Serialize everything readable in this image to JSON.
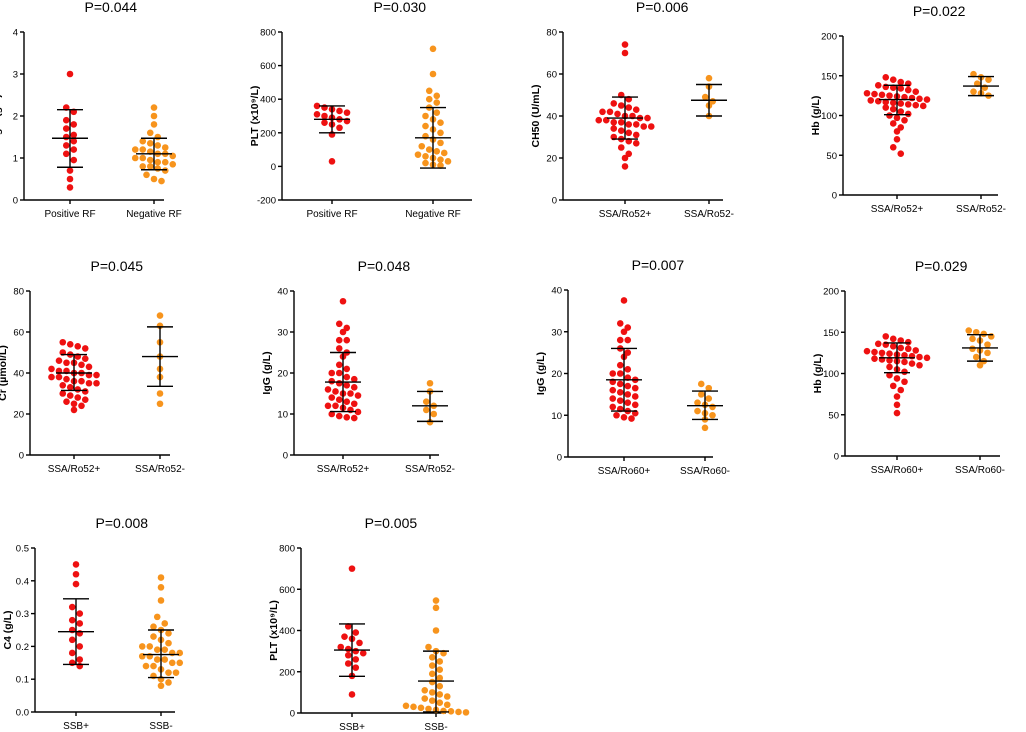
{
  "colors": {
    "group1": "#ee1111",
    "group2": "#f7941d",
    "axis": "#000000"
  },
  "chart_data": [
    {
      "type": "scatter",
      "title": "P=0.044",
      "ylabel": "IgM (g/L)",
      "ylim": [
        0,
        4
      ],
      "yticks": [
        0,
        1,
        2,
        3,
        4
      ],
      "categories": [
        "Positive RF",
        "Negative RF"
      ],
      "series": [
        {
          "name": "Positive RF",
          "color": "red",
          "values": [
            3.0,
            2.2,
            2.1,
            1.9,
            1.8,
            1.7,
            1.55,
            1.5,
            1.4,
            1.3,
            1.2,
            1.1,
            0.95,
            0.7,
            0.5,
            0.3
          ],
          "mean": 1.47,
          "sd_low": 0.78,
          "sd_high": 2.15
        },
        {
          "name": "Negative RF",
          "color": "orange",
          "values": [
            2.2,
            2.0,
            1.8,
            1.6,
            1.5,
            1.4,
            1.35,
            1.3,
            1.25,
            1.2,
            1.2,
            1.15,
            1.1,
            1.1,
            1.05,
            1.0,
            1.0,
            0.95,
            0.9,
            0.9,
            0.85,
            0.8,
            0.8,
            0.75,
            0.7,
            0.6,
            0.5,
            0.45
          ],
          "mean": 1.1,
          "sd_low": 0.72,
          "sd_high": 1.47
        }
      ]
    },
    {
      "type": "scatter",
      "title": "P=0.030",
      "ylabel": "PLT (x10⁹/L)",
      "ylim": [
        -200,
        800
      ],
      "yticks": [
        -200,
        0,
        200,
        400,
        600,
        800
      ],
      "categories": [
        "Positive RF",
        "Negative RF"
      ],
      "series": [
        {
          "name": "Positive RF",
          "color": "red",
          "values": [
            360,
            350,
            340,
            330,
            320,
            310,
            300,
            290,
            280,
            270,
            260,
            250,
            230,
            190,
            30
          ],
          "mean": 280,
          "sd_low": 200,
          "sd_high": 360
        },
        {
          "name": "Negative RF",
          "color": "orange",
          "values": [
            700,
            550,
            450,
            420,
            400,
            380,
            350,
            320,
            300,
            280,
            260,
            240,
            220,
            200,
            180,
            160,
            140,
            120,
            100,
            90,
            80,
            70,
            60,
            50,
            40,
            30,
            20,
            10,
            5
          ],
          "mean": 170,
          "sd_low": -10,
          "sd_high": 350
        }
      ]
    },
    {
      "type": "scatter",
      "title": "P=0.006",
      "ylabel": "CH50 (U/mL)",
      "ylim": [
        0,
        80
      ],
      "yticks": [
        0,
        20,
        40,
        60,
        80
      ],
      "categories": [
        "SSA/Ro52+",
        "SSA/Ro52-"
      ],
      "series": [
        {
          "name": "SSA/Ro52+",
          "color": "red",
          "values": [
            74,
            70,
            50,
            48,
            46,
            45,
            44,
            43,
            42,
            42,
            41,
            40,
            40,
            39,
            39,
            38,
            38,
            37,
            37,
            36,
            36,
            35,
            35,
            34,
            33,
            32,
            31,
            30,
            29,
            28,
            27,
            25,
            22,
            20,
            16
          ],
          "mean": 39,
          "sd_low": 29,
          "sd_high": 49
        },
        {
          "name": "SSA/Ro52-",
          "color": "orange",
          "values": [
            58,
            54,
            49,
            47,
            45,
            40
          ],
          "mean": 47.5,
          "sd_low": 40,
          "sd_high": 55
        }
      ]
    },
    {
      "type": "scatter",
      "title": "P=0.022",
      "ylabel": "Hb (g/L)",
      "ylim": [
        0,
        200
      ],
      "yticks": [
        0,
        50,
        100,
        150,
        200
      ],
      "categories": [
        "SSA/Ro52+",
        "SSA/Ro52-"
      ],
      "series": [
        {
          "name": "SSA/Ro52+",
          "color": "red",
          "values": [
            148,
            145,
            142,
            140,
            138,
            136,
            135,
            134,
            132,
            130,
            128,
            127,
            126,
            125,
            124,
            123,
            122,
            121,
            120,
            119,
            118,
            117,
            116,
            115,
            114,
            113,
            112,
            110,
            108,
            105,
            102,
            100,
            97,
            94,
            90,
            85,
            80,
            70,
            60,
            52
          ],
          "mean": 120,
          "sd_low": 101,
          "sd_high": 138
        },
        {
          "name": "SSA/Ro52-",
          "color": "orange",
          "values": [
            152,
            148,
            145,
            140,
            135,
            130,
            128,
            125
          ],
          "mean": 137,
          "sd_low": 125,
          "sd_high": 149
        }
      ]
    },
    {
      "type": "scatter",
      "title": "P=0.045",
      "ylabel": "Cr (µmol/L)",
      "ylim": [
        0,
        80
      ],
      "yticks": [
        0,
        20,
        40,
        60,
        80
      ],
      "categories": [
        "SSA/Ro52+",
        "SSA/Ro52-"
      ],
      "series": [
        {
          "name": "SSA/Ro52+",
          "color": "red",
          "values": [
            55,
            54,
            53,
            52,
            50,
            49,
            48,
            47,
            46,
            45,
            45,
            44,
            43,
            42,
            41,
            41,
            40,
            40,
            39,
            39,
            38,
            38,
            37,
            36,
            36,
            35,
            35,
            34,
            33,
            32,
            31,
            30,
            29,
            28,
            27,
            26,
            25,
            24,
            22
          ],
          "mean": 40,
          "sd_low": 31.5,
          "sd_high": 49
        },
        {
          "name": "SSA/Ro52-",
          "color": "orange",
          "values": [
            68,
            63,
            55,
            48,
            42,
            38,
            30,
            25
          ],
          "mean": 48,
          "sd_low": 33.5,
          "sd_high": 62.5
        }
      ]
    },
    {
      "type": "scatter",
      "title": "P=0.048",
      "ylabel": "IgG (g/L)",
      "ylim": [
        0,
        40
      ],
      "yticks": [
        0,
        10,
        20,
        30,
        40
      ],
      "categories": [
        "SSA/Ro52+",
        "SSA/Ro52-"
      ],
      "series": [
        {
          "name": "SSA/Ro52+",
          "color": "red",
          "values": [
            37.5,
            32,
            31,
            30,
            28,
            26,
            24,
            22,
            21,
            20,
            19,
            18.5,
            18,
            17.5,
            17,
            16.5,
            16,
            15.5,
            15,
            14.5,
            14,
            13.5,
            13,
            12.5,
            12,
            11.5,
            11,
            10.5,
            10,
            9.5,
            9.2,
            9,
            12,
            15,
            20,
            25,
            28
          ],
          "mean": 17.8,
          "sd_low": 10.6,
          "sd_high": 25
        },
        {
          "name": "SSA/Ro52-",
          "color": "orange",
          "values": [
            17.5,
            15.5,
            13,
            12,
            11,
            10,
            8
          ],
          "mean": 12,
          "sd_low": 8.2,
          "sd_high": 15.5
        }
      ]
    },
    {
      "type": "scatter",
      "title": "P=0.007",
      "ylabel": "IgG (g/L)",
      "ylim": [
        0,
        40
      ],
      "yticks": [
        0,
        10,
        20,
        30,
        40
      ],
      "categories": [
        "SSA/Ro60+",
        "SSA/Ro60-"
      ],
      "series": [
        {
          "name": "SSA/Ro60+",
          "color": "red",
          "values": [
            37.5,
            32,
            31,
            30,
            28,
            26,
            24,
            22,
            21,
            20,
            19,
            18.5,
            18,
            17.5,
            17,
            16.5,
            16,
            15.5,
            15,
            14.5,
            14,
            13.5,
            13,
            12.5,
            12,
            11.5,
            11,
            10.5,
            10,
            9.5,
            9.2,
            25,
            28,
            20
          ],
          "mean": 18.5,
          "sd_low": 11,
          "sd_high": 26
        },
        {
          "name": "SSA/Ro60-",
          "color": "orange",
          "values": [
            17.5,
            16.5,
            15,
            14,
            13,
            12.5,
            12,
            11,
            10.5,
            10,
            9,
            7
          ],
          "mean": 12.3,
          "sd_low": 9,
          "sd_high": 15.8
        }
      ]
    },
    {
      "type": "scatter",
      "title": "P=0.029",
      "ylabel": "Hb (g/L)",
      "ylim": [
        0,
        200
      ],
      "yticks": [
        0,
        50,
        100,
        150,
        200
      ],
      "categories": [
        "SSA/Ro60+",
        "SSA/Ro60-"
      ],
      "series": [
        {
          "name": "SSA/Ro60+",
          "color": "red",
          "values": [
            145,
            142,
            140,
            138,
            136,
            135,
            133,
            131,
            130,
            128,
            127,
            126,
            125,
            124,
            123,
            122,
            121,
            120,
            119,
            118,
            117,
            116,
            115,
            114,
            112,
            110,
            108,
            105,
            102,
            98,
            94,
            90,
            85,
            80,
            72,
            62,
            52
          ],
          "mean": 119,
          "sd_low": 101,
          "sd_high": 137
        },
        {
          "name": "SSA/Ro60-",
          "color": "orange",
          "values": [
            152,
            150,
            148,
            145,
            142,
            140,
            135,
            130,
            128,
            125,
            120,
            115,
            110
          ],
          "mean": 131,
          "sd_low": 115,
          "sd_high": 147
        }
      ]
    },
    {
      "type": "scatter",
      "title": "P=0.008",
      "ylabel": "C4 (g/L)",
      "ylim": [
        0,
        0.5
      ],
      "yticks": [
        0.0,
        0.1,
        0.2,
        0.3,
        0.4,
        0.5
      ],
      "categories": [
        "SSB+",
        "SSB-"
      ],
      "series": [
        {
          "name": "SSB+",
          "color": "red",
          "values": [
            0.45,
            0.42,
            0.39,
            0.32,
            0.3,
            0.28,
            0.27,
            0.25,
            0.24,
            0.22,
            0.2,
            0.18,
            0.16,
            0.15,
            0.14
          ],
          "mean": 0.245,
          "sd_low": 0.145,
          "sd_high": 0.345
        },
        {
          "name": "SSB-",
          "color": "orange",
          "values": [
            0.41,
            0.38,
            0.34,
            0.29,
            0.27,
            0.26,
            0.25,
            0.24,
            0.23,
            0.22,
            0.21,
            0.2,
            0.2,
            0.19,
            0.19,
            0.18,
            0.18,
            0.17,
            0.17,
            0.16,
            0.16,
            0.15,
            0.15,
            0.14,
            0.14,
            0.13,
            0.12,
            0.12,
            0.11,
            0.1,
            0.09,
            0.08
          ],
          "mean": 0.175,
          "sd_low": 0.105,
          "sd_high": 0.25
        }
      ]
    },
    {
      "type": "scatter",
      "title": "P=0.005",
      "ylabel": "PLT (x10⁹/L)",
      "ylim": [
        0,
        800
      ],
      "yticks": [
        0,
        200,
        400,
        600,
        800
      ],
      "categories": [
        "SSB+",
        "SSB-"
      ],
      "series": [
        {
          "name": "SSB+",
          "color": "red",
          "values": [
            700,
            420,
            390,
            370,
            360,
            340,
            320,
            310,
            300,
            290,
            280,
            260,
            240,
            220,
            180,
            90
          ],
          "mean": 305,
          "sd_low": 178,
          "sd_high": 432
        },
        {
          "name": "SSB-",
          "color": "orange",
          "values": [
            545,
            510,
            400,
            320,
            300,
            290,
            270,
            250,
            230,
            210,
            190,
            170,
            150,
            130,
            110,
            100,
            90,
            80,
            70,
            60,
            50,
            40,
            35,
            30,
            25,
            20,
            15,
            10,
            8,
            5,
            3
          ],
          "mean": 155,
          "sd_low": 5,
          "sd_high": 300
        }
      ]
    }
  ]
}
